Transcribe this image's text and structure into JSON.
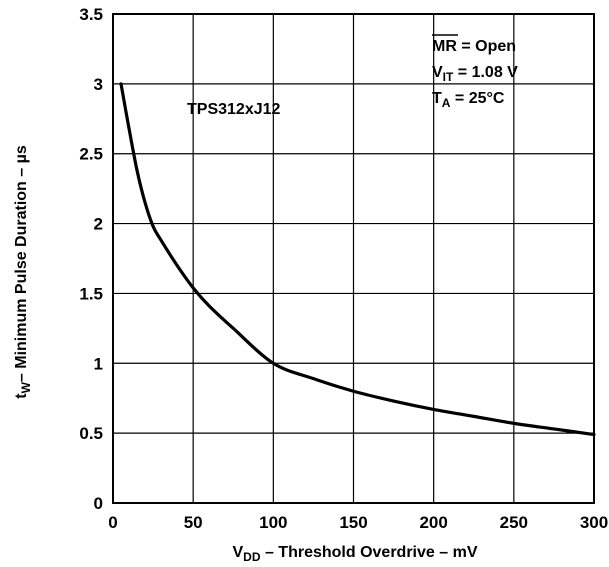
{
  "chart_data": {
    "type": "line",
    "title": "",
    "xlabel": {
      "main": "V",
      "sub": "DD",
      "rest": " – Threshold Overdrive – mV"
    },
    "ylabel": {
      "main": "t",
      "sub": "W",
      "rest": "– Minimum Pulse Duration – µs"
    },
    "xlim": [
      0,
      300
    ],
    "ylim": [
      0,
      3.5
    ],
    "xticks": [
      0,
      50,
      100,
      150,
      200,
      250,
      300
    ],
    "yticks": [
      0,
      0.5,
      1,
      1.5,
      2,
      2.5,
      3,
      3.5
    ],
    "xtick_labels": [
      "0",
      "50",
      "100",
      "150",
      "200",
      "250",
      "300"
    ],
    "ytick_labels": [
      "0",
      "0.5",
      "1",
      "1.5",
      "2",
      "2.5",
      "3",
      "3.5"
    ],
    "grid": true,
    "series": [
      {
        "name": "TPS312xJ12",
        "color": "#000000",
        "x": [
          5,
          10,
          15,
          20,
          25,
          30,
          40,
          50,
          60,
          75,
          100,
          125,
          150,
          175,
          200,
          225,
          250,
          275,
          300
        ],
        "y": [
          3.0,
          2.68,
          2.38,
          2.15,
          1.98,
          1.88,
          1.7,
          1.54,
          1.41,
          1.25,
          1.0,
          0.89,
          0.8,
          0.73,
          0.67,
          0.62,
          0.57,
          0.53,
          0.49
        ]
      }
    ],
    "annotations": {
      "series_label": "TPS312xJ12",
      "condition1": {
        "bar": "MR",
        "rest": " = Open"
      },
      "condition2": {
        "main": "V",
        "sub": "IT",
        "rest": " = 1.08 V"
      },
      "condition3": {
        "main": "T",
        "sub": "A",
        "rest": " = 25°C"
      }
    }
  }
}
